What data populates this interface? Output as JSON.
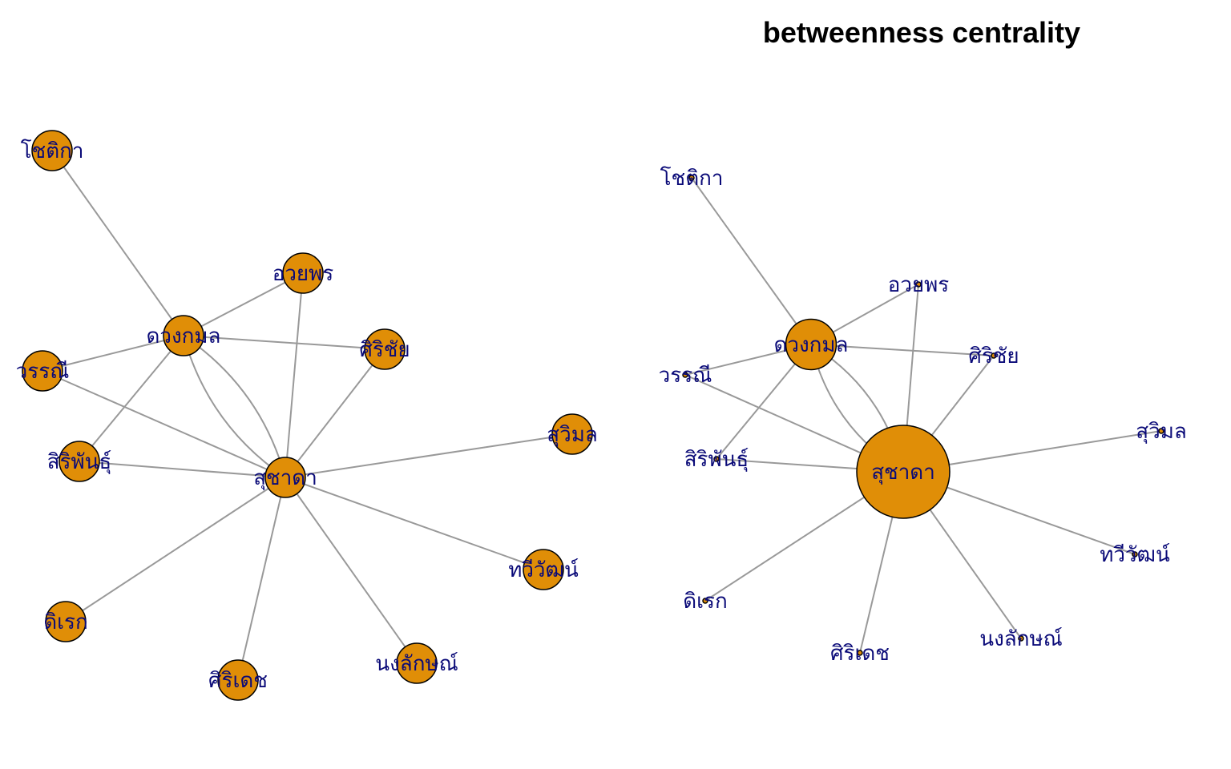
{
  "title": "betweenness centrality",
  "colors": {
    "node_fill": "#E08E07",
    "edge": "#999999",
    "label": "#0A0A78"
  },
  "nodes": [
    {
      "id": "chotika",
      "label": "โชติกา",
      "betweenness": 0
    },
    {
      "id": "ouaiporn",
      "label": "อวยพร",
      "betweenness": 0
    },
    {
      "id": "duangkamol",
      "label": "ดวงกมล",
      "betweenness": 9.5
    },
    {
      "id": "sirichai",
      "label": "ศิริชัย",
      "betweenness": 0
    },
    {
      "id": "wannee",
      "label": "วรรณี",
      "betweenness": 0
    },
    {
      "id": "siriphan",
      "label": "สิริพันธุ์",
      "betweenness": 0
    },
    {
      "id": "suchada",
      "label": "สุชาดา",
      "betweenness": 35.5
    },
    {
      "id": "suwimol",
      "label": "สุวิมล",
      "betweenness": 0
    },
    {
      "id": "taweewat",
      "label": "ทวีวัฒน์",
      "betweenness": 0
    },
    {
      "id": "direk",
      "label": "ดิเรก",
      "betweenness": 0
    },
    {
      "id": "siridet",
      "label": "ศิริเดช",
      "betweenness": 0
    },
    {
      "id": "nonglak",
      "label": "นงลักษณ์",
      "betweenness": 0
    }
  ],
  "edges": [
    {
      "from": "chotika",
      "to": "duangkamol"
    },
    {
      "from": "duangkamol",
      "to": "ouaiporn"
    },
    {
      "from": "duangkamol",
      "to": "sirichai"
    },
    {
      "from": "duangkamol",
      "to": "wannee"
    },
    {
      "from": "duangkamol",
      "to": "siriphan"
    },
    {
      "from": "duangkamol",
      "to": "suchada"
    },
    {
      "from": "duangkamol",
      "to": "suchada"
    },
    {
      "from": "wannee",
      "to": "suchada"
    },
    {
      "from": "ouaiporn",
      "to": "suchada"
    },
    {
      "from": "sirichai",
      "to": "suchada"
    },
    {
      "from": "siriphan",
      "to": "suchada"
    },
    {
      "from": "suchada",
      "to": "suwimol"
    },
    {
      "from": "suchada",
      "to": "taweewat"
    },
    {
      "from": "suchada",
      "to": "direk"
    },
    {
      "from": "suchada",
      "to": "siridet"
    },
    {
      "from": "suchada",
      "to": "nonglak"
    }
  ]
}
